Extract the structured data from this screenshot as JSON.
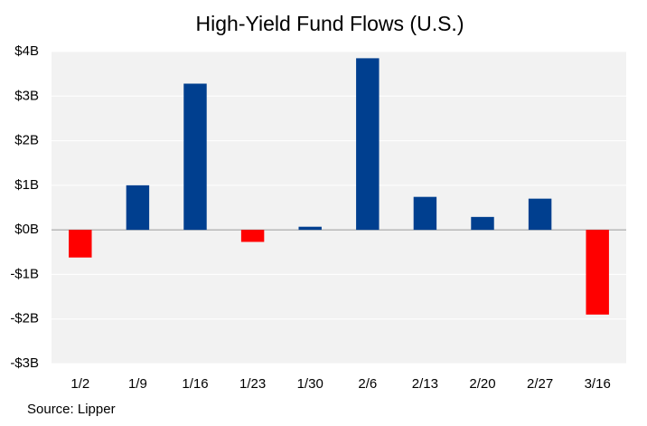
{
  "chart_data": {
    "type": "bar",
    "title": "High-Yield Fund Flows (U.S.)",
    "categories": [
      "1/2",
      "1/9",
      "1/16",
      "1/23",
      "1/30",
      "2/6",
      "2/13",
      "2/20",
      "2/27",
      "3/16"
    ],
    "values": [
      -0.62,
      1.0,
      3.28,
      -0.27,
      0.07,
      3.85,
      0.74,
      0.29,
      0.7,
      -1.9
    ],
    "color": "#003f8f",
    "negative_color": "#ff0000",
    "ylim": [
      -3,
      4
    ],
    "yticks": [
      {
        "value": -3,
        "label": "-$3B"
      },
      {
        "value": -2,
        "label": "-$2B"
      },
      {
        "value": -1,
        "label": "-$1B"
      },
      {
        "value": 0,
        "label": "$0B"
      },
      {
        "value": 1,
        "label": "$1B"
      },
      {
        "value": 2,
        "label": "$2B"
      },
      {
        "value": 3,
        "label": "$3B"
      },
      {
        "value": 4,
        "label": "$4B"
      }
    ],
    "grid": true,
    "source": "Source: Lipper"
  }
}
